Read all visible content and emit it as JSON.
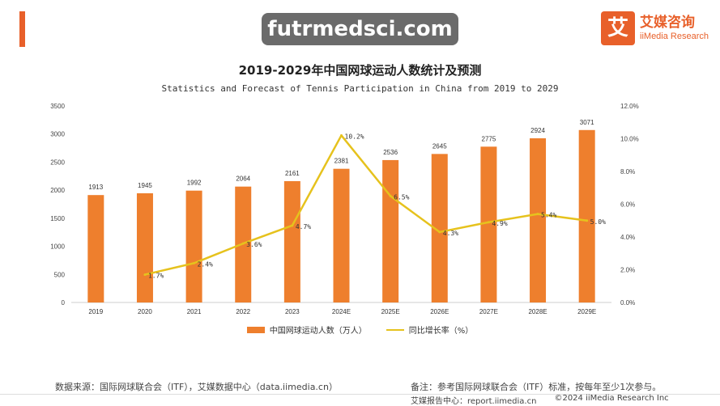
{
  "brand": {
    "logo_glyph": "艾",
    "name_cn": "艾媒咨询",
    "name_en": "iiMedia Research"
  },
  "watermark": "futrmedsci.com",
  "colors": {
    "accent": "#e8602a",
    "bar": "#ee7f2d",
    "line": "#e6c21d"
  },
  "chart_data": {
    "type": "bar",
    "title": "2019-2029年中国网球运动人数统计及预测",
    "subtitle": "Statistics and Forecast of Tennis Participation in China from 2019 to 2029",
    "categories": [
      "2019",
      "2020",
      "2021",
      "2022",
      "2023",
      "2024E",
      "2025E",
      "2026E",
      "2027E",
      "2028E",
      "2029E"
    ],
    "series": [
      {
        "name": "中国网球运动人数（万人）",
        "type": "bar",
        "axis": "left",
        "values": [
          1913,
          1945,
          1992,
          2064,
          2161,
          2381,
          2536,
          2645,
          2775,
          2924,
          3071
        ]
      },
      {
        "name": "同比增长率（%）",
        "type": "line",
        "axis": "right",
        "values": [
          null,
          1.7,
          2.4,
          3.6,
          4.7,
          10.2,
          6.5,
          4.3,
          4.9,
          5.4,
          5.0
        ],
        "labels": [
          null,
          "1.7%",
          "2.4%",
          "3.6%",
          "4.7%",
          "10.2%",
          "6.5%",
          "4.3%",
          "4.9%",
          "5.4%",
          "5.0%"
        ]
      }
    ],
    "y_left": {
      "ylim": [
        0,
        3500
      ],
      "ticks": [
        "0",
        "500",
        "1000",
        "1500",
        "2000",
        "2500",
        "3000",
        "3500"
      ]
    },
    "y_right": {
      "ylim": [
        0,
        12
      ],
      "ticks": [
        "0.0%",
        "2.0%",
        "4.0%",
        "6.0%",
        "8.0%",
        "10.0%",
        "12.0%"
      ]
    },
    "grid": false,
    "legend_position": "bottom"
  },
  "footer": {
    "source": "数据来源：国际网球联合会（ITF），艾媒数据中心（data.iimedia.cn）",
    "note": "备注：参考国际网球联合会（ITF）标准，按每年至少1次参与。",
    "report": "艾媒报告中心：report.iimedia.cn",
    "copyright": "©2024   iiMedia Research  Inc"
  }
}
